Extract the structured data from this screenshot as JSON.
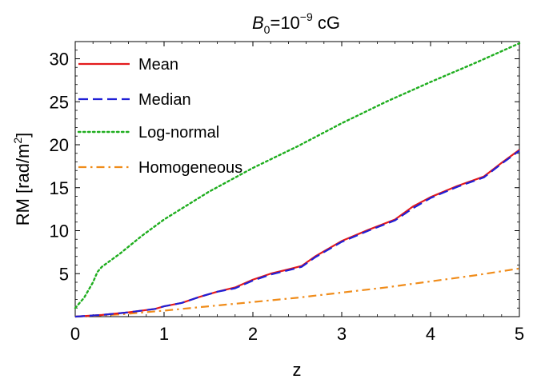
{
  "chart_data": {
    "type": "line",
    "title": {
      "base": "B",
      "base_sub": "0",
      "eq": "=10",
      "exp": "−9",
      "unit": " cG"
    },
    "xlabel": "z",
    "ylabel": {
      "main": "RM [rad/m",
      "sup": "2",
      "close": "]"
    },
    "xlim": [
      0,
      5
    ],
    "ylim": [
      0,
      32
    ],
    "x_ticks": [
      0,
      1,
      2,
      3,
      4,
      5
    ],
    "y_ticks": [
      5,
      10,
      15,
      20,
      25,
      30
    ],
    "grid": false,
    "legend_position": "top-left",
    "series": [
      {
        "name": "Mean",
        "color": "#e31a1c",
        "dash": "solid",
        "x": [
          0,
          0.3,
          0.6,
          0.9,
          1.0,
          1.2,
          1.4,
          1.6,
          1.8,
          2.0,
          2.2,
          2.4,
          2.55,
          2.7,
          3.0,
          3.3,
          3.6,
          3.8,
          4.0,
          4.3,
          4.6,
          4.8,
          5.0
        ],
        "y": [
          0,
          0.2,
          0.5,
          0.9,
          1.2,
          1.6,
          2.3,
          2.9,
          3.4,
          4.3,
          5.0,
          5.5,
          5.9,
          7.0,
          8.8,
          10.1,
          11.3,
          12.8,
          13.9,
          15.2,
          16.3,
          17.9,
          19.4
        ]
      },
      {
        "name": "Median",
        "color": "#1f1fd6",
        "dash": "dashed",
        "x": [
          0,
          0.3,
          0.6,
          0.9,
          1.0,
          1.2,
          1.4,
          1.6,
          1.8,
          2.0,
          2.2,
          2.4,
          2.55,
          2.7,
          3.0,
          3.3,
          3.6,
          3.8,
          4.0,
          4.3,
          4.6,
          4.8,
          5.0
        ],
        "y": [
          0,
          0.2,
          0.5,
          0.9,
          1.2,
          1.6,
          2.3,
          2.9,
          3.3,
          4.2,
          4.9,
          5.4,
          5.8,
          6.9,
          8.7,
          10.0,
          11.2,
          12.6,
          13.8,
          15.1,
          16.2,
          17.8,
          19.3
        ]
      },
      {
        "name": "Log-normal",
        "color": "#1fae1f",
        "dash": "dotted",
        "x": [
          0,
          0.1,
          0.2,
          0.25,
          0.3,
          0.5,
          0.75,
          1.0,
          1.5,
          2.0,
          2.5,
          3.0,
          3.5,
          4.0,
          4.5,
          5.0
        ],
        "y": [
          1.0,
          2.2,
          4.0,
          5.2,
          5.8,
          7.3,
          9.4,
          11.3,
          14.5,
          17.3,
          19.8,
          22.5,
          25.0,
          27.3,
          29.5,
          31.8
        ]
      },
      {
        "name": "Homogeneous",
        "color": "#f08c1a",
        "dash": "dashdot",
        "x": [
          0,
          0.5,
          1.0,
          1.5,
          2.0,
          2.5,
          3.0,
          3.5,
          4.0,
          4.5,
          5.0
        ],
        "y": [
          0,
          0.25,
          0.7,
          1.2,
          1.7,
          2.2,
          2.8,
          3.4,
          4.1,
          4.8,
          5.6
        ]
      }
    ]
  }
}
